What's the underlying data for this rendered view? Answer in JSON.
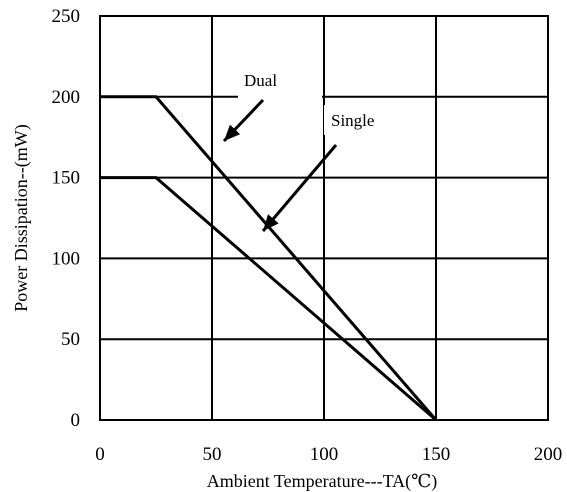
{
  "chart_data": {
    "type": "line",
    "title": "",
    "xlabel": "Ambient Temperature---TA(℃)",
    "ylabel": "Power Dissipation--(mW)",
    "xlim": [
      0,
      200
    ],
    "ylim": [
      0,
      250
    ],
    "xticks": [
      "0",
      "50",
      "100",
      "150",
      "200"
    ],
    "yticks": [
      "0",
      "50",
      "100",
      "150",
      "200",
      "250"
    ],
    "grid": true,
    "series": [
      {
        "name": "Dual",
        "x": [
          0,
          25,
          150
        ],
        "y": [
          200,
          200,
          0
        ]
      },
      {
        "name": "Single",
        "x": [
          0,
          25,
          150
        ],
        "y": [
          150,
          150,
          0
        ]
      }
    ],
    "annotations": [
      {
        "text": "Dual",
        "target_series": "Dual"
      },
      {
        "text": "Single",
        "target_series": "Dual"
      }
    ]
  }
}
